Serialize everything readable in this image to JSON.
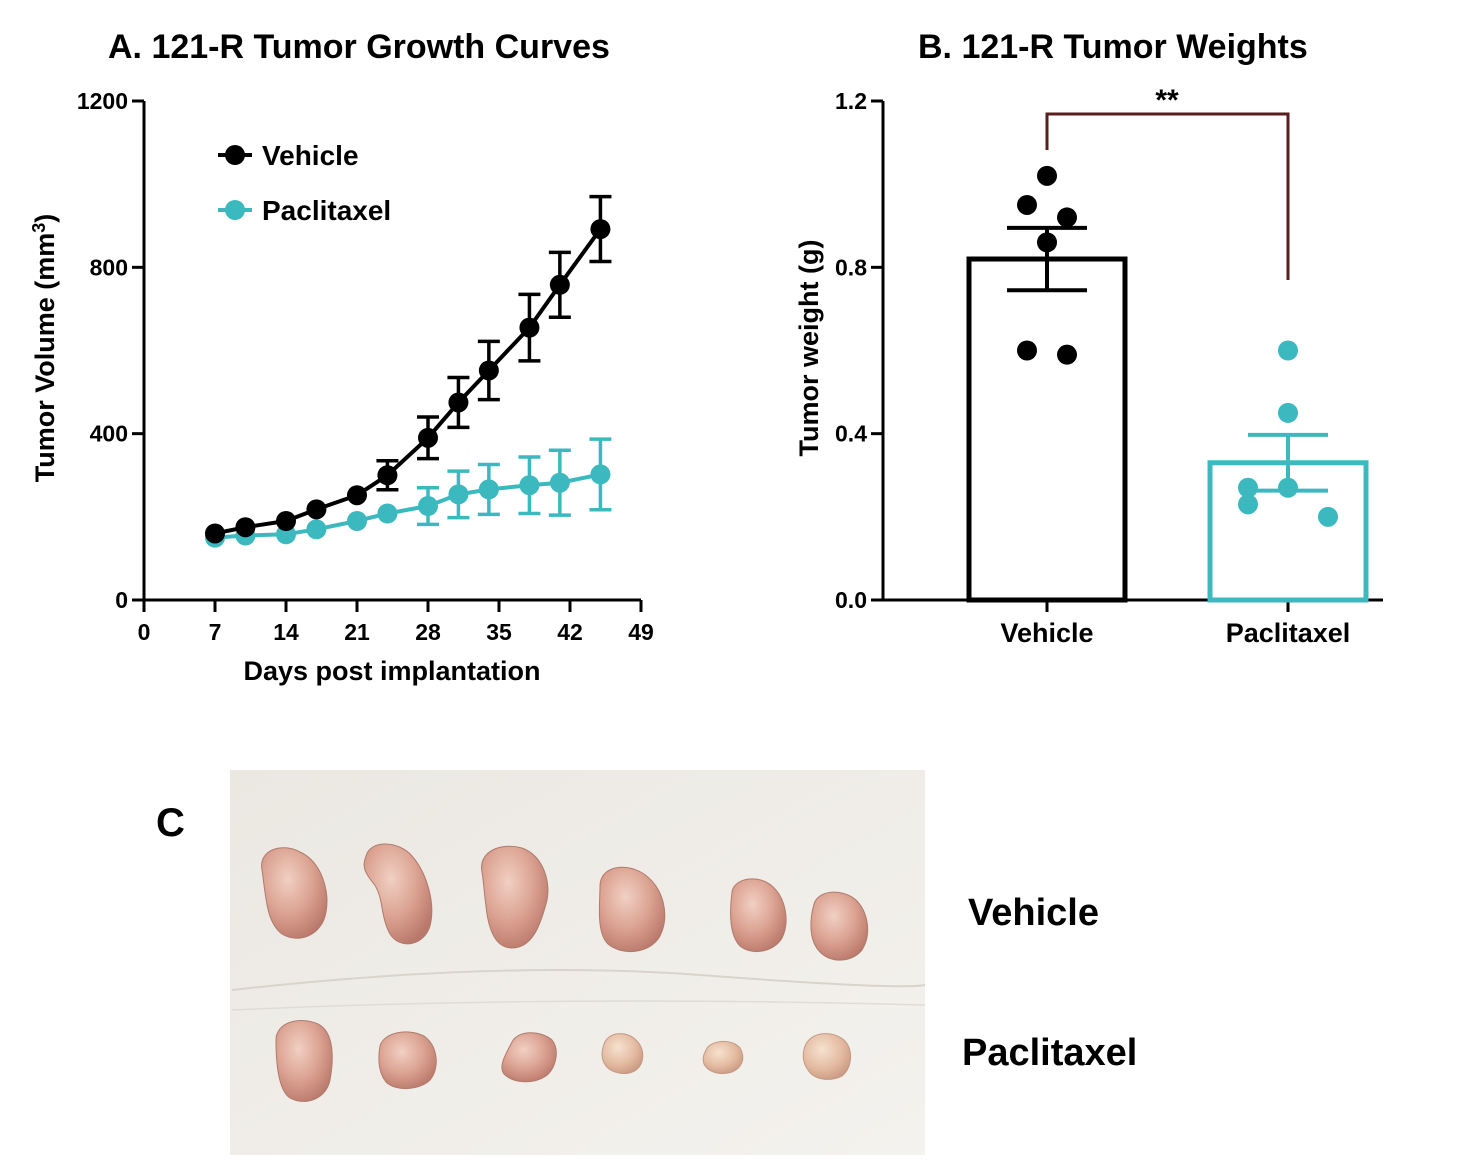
{
  "chart_data": [
    {
      "type": "line",
      "title": "A.   121-R Tumor Growth Curves",
      "xlabel": "Days post implantation",
      "ylabel": "Tumor Volume (mm",
      "ylabel_sup": "3",
      "ylabel_close": ")",
      "xlim": [
        0,
        49
      ],
      "ylim": [
        0,
        1200
      ],
      "xticks": [
        0,
        7,
        14,
        21,
        28,
        35,
        42,
        49
      ],
      "yticks": [
        0,
        400,
        800,
        1200
      ],
      "legend_position": "top-left",
      "series": [
        {
          "name": "Vehicle",
          "color": "#000000",
          "x": [
            7,
            10,
            14,
            17,
            21,
            24,
            28,
            31,
            34,
            38,
            41,
            45
          ],
          "y": [
            160,
            175,
            190,
            218,
            252,
            300,
            390,
            475,
            552,
            655,
            758,
            892
          ],
          "err": [
            0,
            0,
            0,
            0,
            0,
            35,
            50,
            60,
            70,
            80,
            78,
            78
          ]
        },
        {
          "name": "Paclitaxel",
          "color": "#3cb8bf",
          "x": [
            7,
            10,
            14,
            17,
            21,
            24,
            28,
            31,
            34,
            38,
            41,
            45
          ],
          "y": [
            150,
            155,
            158,
            170,
            190,
            208,
            226,
            254,
            266,
            276,
            282,
            302
          ],
          "err": [
            0,
            0,
            0,
            0,
            0,
            0,
            44,
            56,
            60,
            68,
            78,
            85
          ]
        }
      ]
    },
    {
      "type": "bar",
      "title": "B.  121-R Tumor Weights",
      "ylabel": "Tumor weight (g)",
      "ylim": [
        0,
        1.2
      ],
      "yticks": [
        "0.0",
        "0.4",
        "0.8",
        "1.2"
      ],
      "categories": [
        "Vehicle",
        "Paclitaxel"
      ],
      "values": [
        0.82,
        0.33
      ],
      "sem": [
        0.075,
        0.067
      ],
      "colors": [
        "#000000",
        "#3cb8bf"
      ],
      "points": [
        [
          1.02,
          0.95,
          0.92,
          0.86,
          0.6,
          0.59
        ],
        [
          0.6,
          0.45,
          0.27,
          0.27,
          0.23,
          0.2
        ]
      ],
      "significance": "**",
      "bracket_color": "#5a1e1e"
    }
  ],
  "photo": {
    "panel_label": "C",
    "row_labels": [
      "Vehicle",
      "Paclitaxel"
    ]
  }
}
